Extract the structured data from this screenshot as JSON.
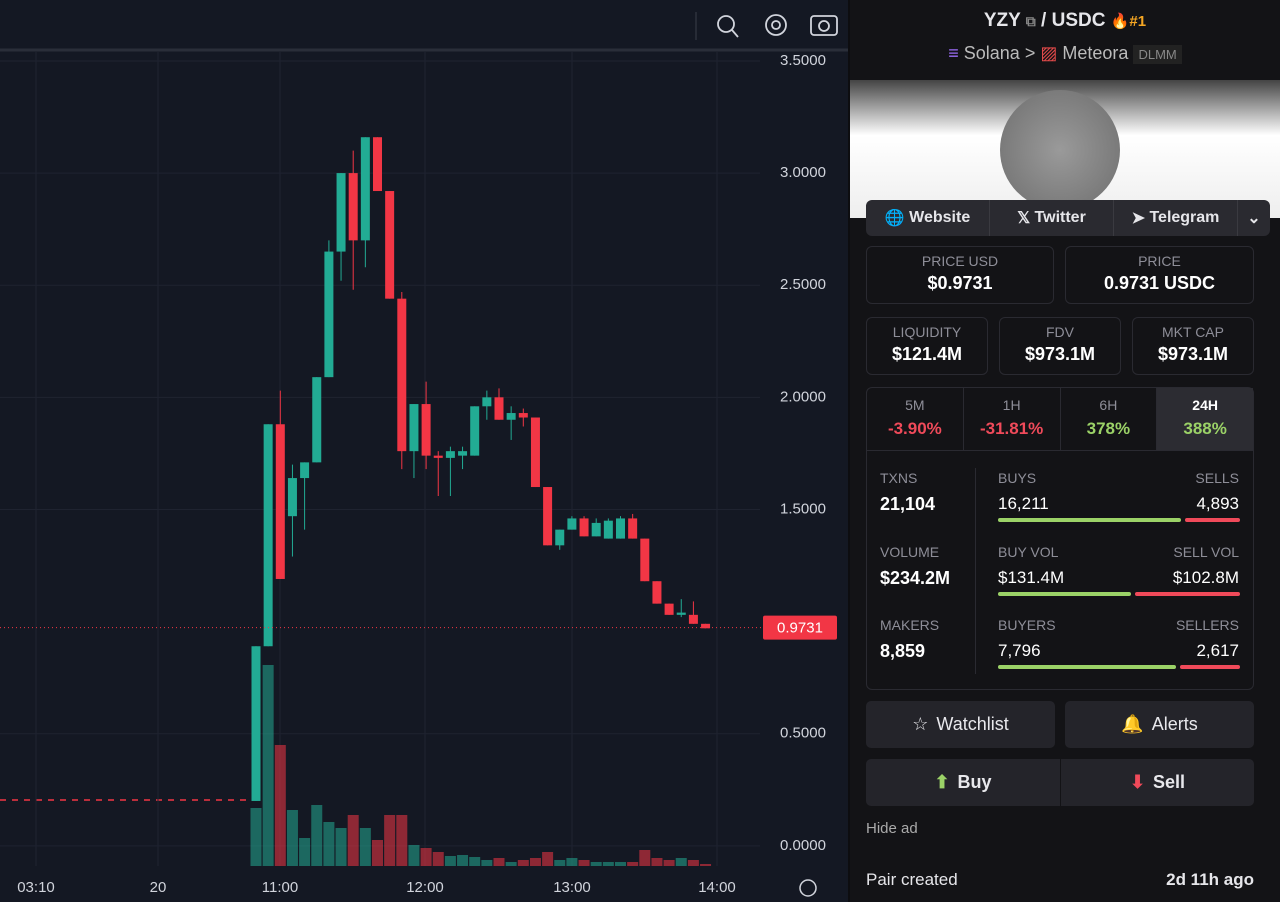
{
  "chart_data": {
    "type": "candlestick",
    "open": [
      0.2,
      0.89,
      1.88,
      1.47,
      1.64,
      1.71,
      2.09,
      2.65,
      3.0,
      2.7,
      3.16,
      2.92,
      2.44,
      1.76,
      1.97,
      1.74,
      1.73,
      1.74,
      1.74,
      1.96,
      2.0,
      1.9,
      1.93,
      1.91,
      1.6,
      1.34,
      1.41,
      1.46,
      1.38,
      1.37,
      1.37,
      1.46,
      1.37,
      1.18,
      1.08,
      1.03,
      1.03,
      0.99
    ],
    "high": [
      0.89,
      1.88,
      2.03,
      1.7,
      1.71,
      2.09,
      2.7,
      3.0,
      3.1,
      3.16,
      3.16,
      2.92,
      2.47,
      1.97,
      2.07,
      1.76,
      1.78,
      1.78,
      1.96,
      2.03,
      2.04,
      1.96,
      1.95,
      1.91,
      1.6,
      1.41,
      1.47,
      1.47,
      1.46,
      1.46,
      1.47,
      1.48,
      1.37,
      1.18,
      1.08,
      1.1,
      1.09,
      0.99
    ],
    "low": [
      0.2,
      0.89,
      1.19,
      1.29,
      1.41,
      1.71,
      2.09,
      2.52,
      2.48,
      2.58,
      2.92,
      2.44,
      1.68,
      1.64,
      1.68,
      1.56,
      1.56,
      1.68,
      1.74,
      1.9,
      1.9,
      1.81,
      1.87,
      1.6,
      1.34,
      1.32,
      1.41,
      1.38,
      1.38,
      1.37,
      1.37,
      1.37,
      1.18,
      1.08,
      1.03,
      1.02,
      0.99,
      0.97
    ],
    "close": [
      0.89,
      1.88,
      1.19,
      1.64,
      1.71,
      2.09,
      2.65,
      3.0,
      2.7,
      3.16,
      2.92,
      2.44,
      1.76,
      1.97,
      1.74,
      1.73,
      1.76,
      1.76,
      1.96,
      2.0,
      1.9,
      1.93,
      1.91,
      1.6,
      1.34,
      1.41,
      1.46,
      1.38,
      1.44,
      1.45,
      1.46,
      1.37,
      1.18,
      1.08,
      1.03,
      1.04,
      0.99,
      0.97
    ],
    "volume": [
      58,
      201,
      121,
      56,
      28,
      61,
      44,
      38,
      51,
      38,
      26,
      51,
      51,
      21,
      18,
      14,
      10,
      11,
      9,
      6,
      8,
      4,
      6,
      8,
      14,
      6,
      8,
      6,
      4,
      4,
      4,
      4,
      16,
      8,
      6,
      8,
      6,
      2
    ],
    "up_color": "#22ab94",
    "down_color": "#f23645",
    "ylim": [
      -0.09,
      3.54
    ],
    "yticks": [
      {
        "value": 0,
        "label": "0.0000"
      },
      {
        "value": 0.5,
        "label": "0.5000"
      },
      {
        "value": 1.5,
        "label": "1.5000"
      },
      {
        "value": 2,
        "label": "2.0000"
      },
      {
        "value": 2.5,
        "label": "2.5000"
      },
      {
        "value": 3,
        "label": "3.0000"
      },
      {
        "value": 3.5,
        "label": "3.5000"
      }
    ],
    "xticks": [
      "03:10",
      "20",
      "11:00",
      "12:00",
      "13:00",
      "14:00"
    ],
    "last_price": 0.9731,
    "grid": true
  },
  "header": {
    "pair": "YZY",
    "separator": "/",
    "quote": "USDC",
    "rank": "#1",
    "chain": "Solana",
    "arrow": ">",
    "dex": "Meteora",
    "dex_tag": "DLMM"
  },
  "links": [
    "Website",
    "Twitter",
    "Telegram"
  ],
  "prices": [
    {
      "label": "PRICE USD",
      "value": "$0.9731"
    },
    {
      "label": "PRICE",
      "value": "0.9731 USDC"
    }
  ],
  "stats": [
    {
      "label": "LIQUIDITY",
      "value": "$121.4M"
    },
    {
      "label": "FDV",
      "value": "$973.1M"
    },
    {
      "label": "MKT CAP",
      "value": "$973.1M"
    }
  ],
  "timeframes": [
    {
      "label": "5M",
      "value": "-3.90%"
    },
    {
      "label": "1H",
      "value": "-31.81%"
    },
    {
      "label": "6H",
      "value": "378%"
    },
    {
      "label": "24H",
      "value": "388%"
    }
  ],
  "activity": {
    "txns": {
      "label": "TXNS",
      "value": "21,104"
    },
    "buys": {
      "label": "BUYS",
      "value": 16211,
      "value_label": "16,211"
    },
    "sells": {
      "label": "SELLS",
      "value": 4893,
      "value_label": "4,893"
    },
    "volume": {
      "label": "VOLUME",
      "value": "$234.2M"
    },
    "buy_vol": {
      "label": "BUY VOL",
      "value": 131.4,
      "value_label": "$131.4M"
    },
    "sell_vol": {
      "label": "SELL VOL",
      "value": 102.8,
      "value_label": "$102.8M"
    },
    "makers": {
      "label": "MAKERS",
      "value": "8,859"
    },
    "buyers": {
      "label": "BUYERS",
      "value": 7796,
      "value_label": "7,796"
    },
    "sellers": {
      "label": "SELLERS",
      "value": 2617,
      "value_label": "2,617"
    }
  },
  "buttons": {
    "watchlist": "Watchlist",
    "alerts": "Alerts",
    "buy": "Buy",
    "sell": "Sell"
  },
  "hide_ad": "Hide ad",
  "pair_created": {
    "label": "Pair created",
    "value": "2d 11h ago"
  }
}
